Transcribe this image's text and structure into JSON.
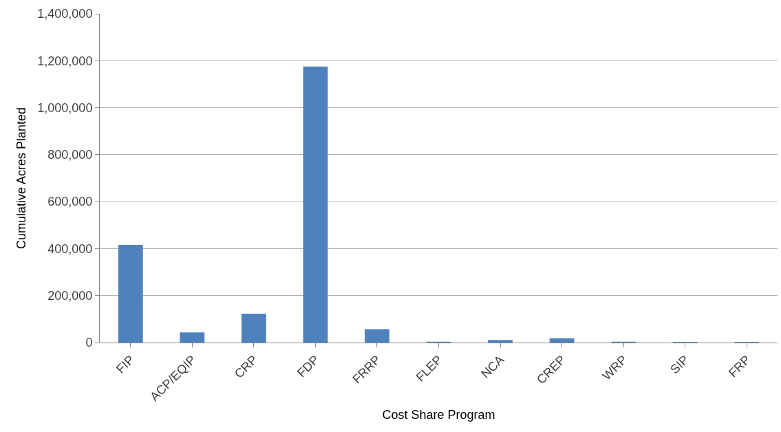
{
  "chart_data": {
    "type": "bar",
    "xlabel": "Cost Share Program",
    "ylabel": "Cumulative Acres Planted",
    "categories": [
      "FIP",
      "ACP/EQIP",
      "CRP",
      "FDP",
      "FRRP",
      "FLEP",
      "NCA",
      "CREP",
      "WRP",
      "SIP",
      "FRP"
    ],
    "values": [
      416000,
      43000,
      123000,
      1175000,
      57000,
      4000,
      11000,
      18000,
      4000,
      3000,
      3000
    ],
    "color": "#4f81bd",
    "ylim": [
      0,
      1400000
    ],
    "yticks": [
      {
        "value": 0,
        "label": "0"
      },
      {
        "value": 200000,
        "label": "200,000"
      },
      {
        "value": 400000,
        "label": "400,000"
      },
      {
        "value": 600000,
        "label": "600,000"
      },
      {
        "value": 800000,
        "label": "800,000"
      },
      {
        "value": 1000000,
        "label": "1,000,000"
      },
      {
        "value": 1200000,
        "label": "1,200,000"
      },
      {
        "value": 1400000,
        "label": "1,400,000"
      }
    ],
    "grid": "y"
  }
}
